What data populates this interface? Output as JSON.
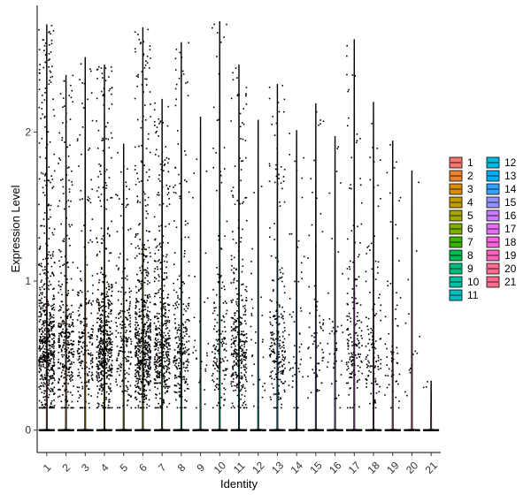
{
  "chart_data": {
    "type": "scatter",
    "subtype": "violin-jitter",
    "title": "",
    "xlabel": "Identity",
    "ylabel": "Expression Level",
    "ylim": [
      -0.15,
      2.85
    ],
    "yticks": [
      0,
      1,
      2
    ],
    "grid": false,
    "legend_position": "right",
    "categories": [
      "1",
      "2",
      "3",
      "4",
      "5",
      "6",
      "7",
      "8",
      "9",
      "10",
      "11",
      "12",
      "13",
      "14",
      "15",
      "16",
      "17",
      "18",
      "19",
      "20",
      "21"
    ],
    "colors": [
      "#F8766D",
      "#EA8331",
      "#D89000",
      "#C09B00",
      "#A3A500",
      "#7CAE00",
      "#39B600",
      "#00BB4E",
      "#00BF7D",
      "#00C1A3",
      "#00BFC4",
      "#00BAE0",
      "#00B0F6",
      "#35A2FF",
      "#9590FF",
      "#C77CFF",
      "#E76BF3",
      "#FA62DB",
      "#FF62BC",
      "#FF6C91",
      "#FF6C91"
    ],
    "series": [
      {
        "name": "1",
        "max": 2.72,
        "n_zero": 260,
        "n_expr": 640
      },
      {
        "name": "2",
        "max": 2.38,
        "n_zero": 240,
        "n_expr": 340
      },
      {
        "name": "3",
        "max": 2.5,
        "n_zero": 240,
        "n_expr": 220
      },
      {
        "name": "4",
        "max": 2.45,
        "n_zero": 220,
        "n_expr": 520
      },
      {
        "name": "5",
        "max": 1.92,
        "n_zero": 240,
        "n_expr": 200
      },
      {
        "name": "6",
        "max": 2.7,
        "n_zero": 240,
        "n_expr": 600
      },
      {
        "name": "7",
        "max": 2.22,
        "n_zero": 240,
        "n_expr": 430
      },
      {
        "name": "8",
        "max": 2.6,
        "n_zero": 220,
        "n_expr": 260
      },
      {
        "name": "9",
        "max": 2.1,
        "n_zero": 220,
        "n_expr": 30
      },
      {
        "name": "10",
        "max": 2.74,
        "n_zero": 220,
        "n_expr": 170
      },
      {
        "name": "11",
        "max": 2.45,
        "n_zero": 220,
        "n_expr": 330
      },
      {
        "name": "12",
        "max": 2.08,
        "n_zero": 210,
        "n_expr": 30
      },
      {
        "name": "13",
        "max": 2.32,
        "n_zero": 210,
        "n_expr": 220
      },
      {
        "name": "14",
        "max": 2.01,
        "n_zero": 200,
        "n_expr": 50
      },
      {
        "name": "15",
        "max": 2.19,
        "n_zero": 200,
        "n_expr": 70
      },
      {
        "name": "16",
        "max": 1.97,
        "n_zero": 200,
        "n_expr": 40
      },
      {
        "name": "17",
        "max": 2.62,
        "n_zero": 200,
        "n_expr": 160
      },
      {
        "name": "18",
        "max": 2.2,
        "n_zero": 190,
        "n_expr": 120
      },
      {
        "name": "19",
        "max": 1.94,
        "n_zero": 190,
        "n_expr": 60
      },
      {
        "name": "20",
        "max": 1.74,
        "n_zero": 180,
        "n_expr": 15
      },
      {
        "name": "21",
        "max": 0.33,
        "n_zero": 170,
        "n_expr": 3
      }
    ],
    "legend": {
      "col1": [
        "1",
        "2",
        "3",
        "4",
        "5",
        "6",
        "7",
        "8",
        "9",
        "10",
        "11"
      ],
      "col2": [
        "12",
        "13",
        "14",
        "15",
        "16",
        "17",
        "18",
        "19",
        "20",
        "21"
      ]
    }
  }
}
